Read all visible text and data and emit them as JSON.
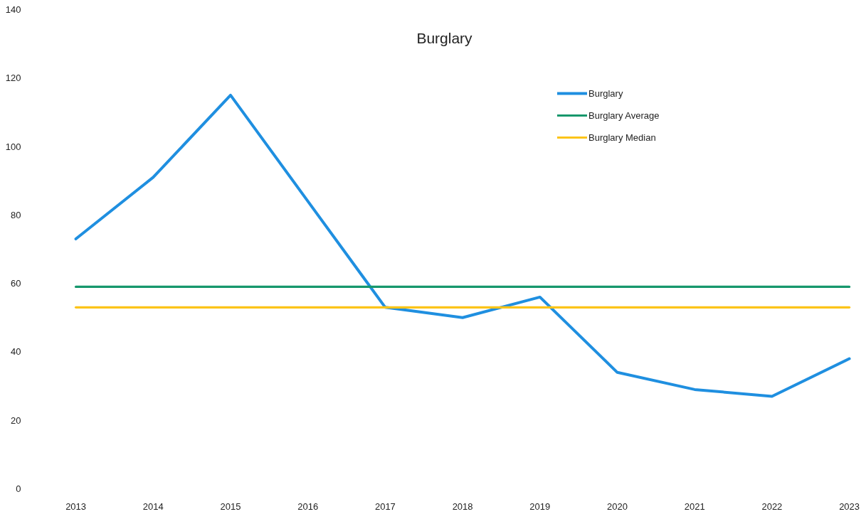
{
  "chart_data": {
    "type": "line",
    "title": "Burglary",
    "categories": [
      "2013",
      "2014",
      "2015",
      "2016",
      "2017",
      "2018",
      "2019",
      "2020",
      "2021",
      "2022",
      "2023"
    ],
    "series": [
      {
        "name": "Burglary",
        "color": "#1f8fe0",
        "values": [
          73,
          91,
          115,
          84,
          53,
          50,
          56,
          34,
          29,
          27,
          38
        ]
      },
      {
        "name": "Burglary Average",
        "color": "#16976c",
        "values": [
          59,
          59,
          59,
          59,
          59,
          59,
          59,
          59,
          59,
          59,
          59
        ]
      },
      {
        "name": "Burglary Median",
        "color": "#fcc419",
        "values": [
          53,
          53,
          53,
          53,
          53,
          53,
          53,
          53,
          53,
          53,
          53
        ]
      }
    ],
    "ylim": [
      0,
      140
    ],
    "yticks": [
      0,
      20,
      40,
      60,
      80,
      100,
      120,
      140
    ],
    "grid": false,
    "legend": "top right"
  }
}
